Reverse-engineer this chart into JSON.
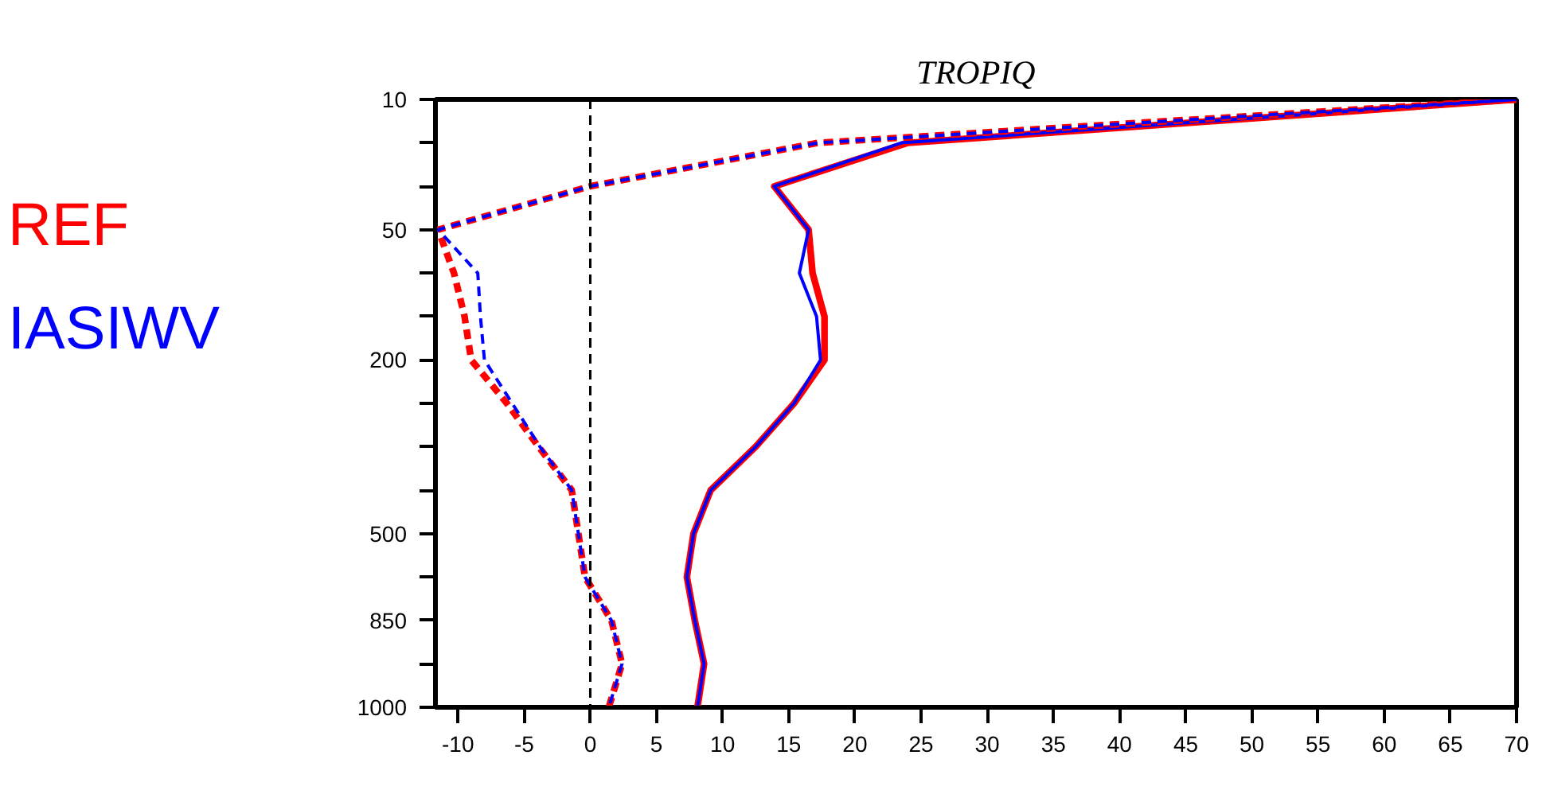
{
  "chart_data": {
    "type": "line",
    "title": "TROPIQ",
    "orientation": "horizontal",
    "xlim": [
      -11.7,
      70
    ],
    "xticks": [
      -10,
      -5,
      0,
      5,
      10,
      15,
      20,
      25,
      30,
      35,
      40,
      45,
      50,
      55,
      60,
      65,
      70
    ],
    "categories": [
      "10",
      null,
      null,
      "50",
      null,
      null,
      "200",
      null,
      null,
      null,
      "500",
      null,
      "850",
      null,
      "1000"
    ],
    "grid": false,
    "legend": "left",
    "marker": "none",
    "ref_lines": [
      {
        "axis": "x",
        "value": 0,
        "label": null,
        "color": "#000000",
        "line_style": "dashed"
      }
    ],
    "series": [
      {
        "name": "REF",
        "color": "#ff0000",
        "line_style": "solid",
        "values": [
          70,
          24,
          13.9,
          16.5,
          16.8,
          17.7,
          17.7,
          15.4,
          12.5,
          9.1,
          7.8,
          7.3,
          7.9,
          8.6,
          8.1
        ]
      },
      {
        "name": "IASIWV",
        "color": "#0000ff",
        "line_style": "solid",
        "values": [
          70,
          23.5,
          13.9,
          16.5,
          15.8,
          17.1,
          17.4,
          15.4,
          12.5,
          9.1,
          7.8,
          7.3,
          7.9,
          8.6,
          8.1
        ]
      },
      {
        "color": "#ff0000",
        "line_style": "dashed",
        "values": [
          70,
          17.2,
          0,
          -11.5,
          -10.3,
          -9.5,
          -9,
          -6.3,
          -3.9,
          -1.4,
          -0.9,
          -0.4,
          1.6,
          2.4,
          1.4
        ]
      },
      {
        "color": "#0000ff",
        "line_style": "dashed",
        "values": [
          70,
          17.2,
          0,
          -11.5,
          -8.5,
          -8.3,
          -8,
          -5.9,
          -3.8,
          -1.4,
          -0.9,
          -0.4,
          1.6,
          2.4,
          1.4
        ]
      }
    ]
  }
}
